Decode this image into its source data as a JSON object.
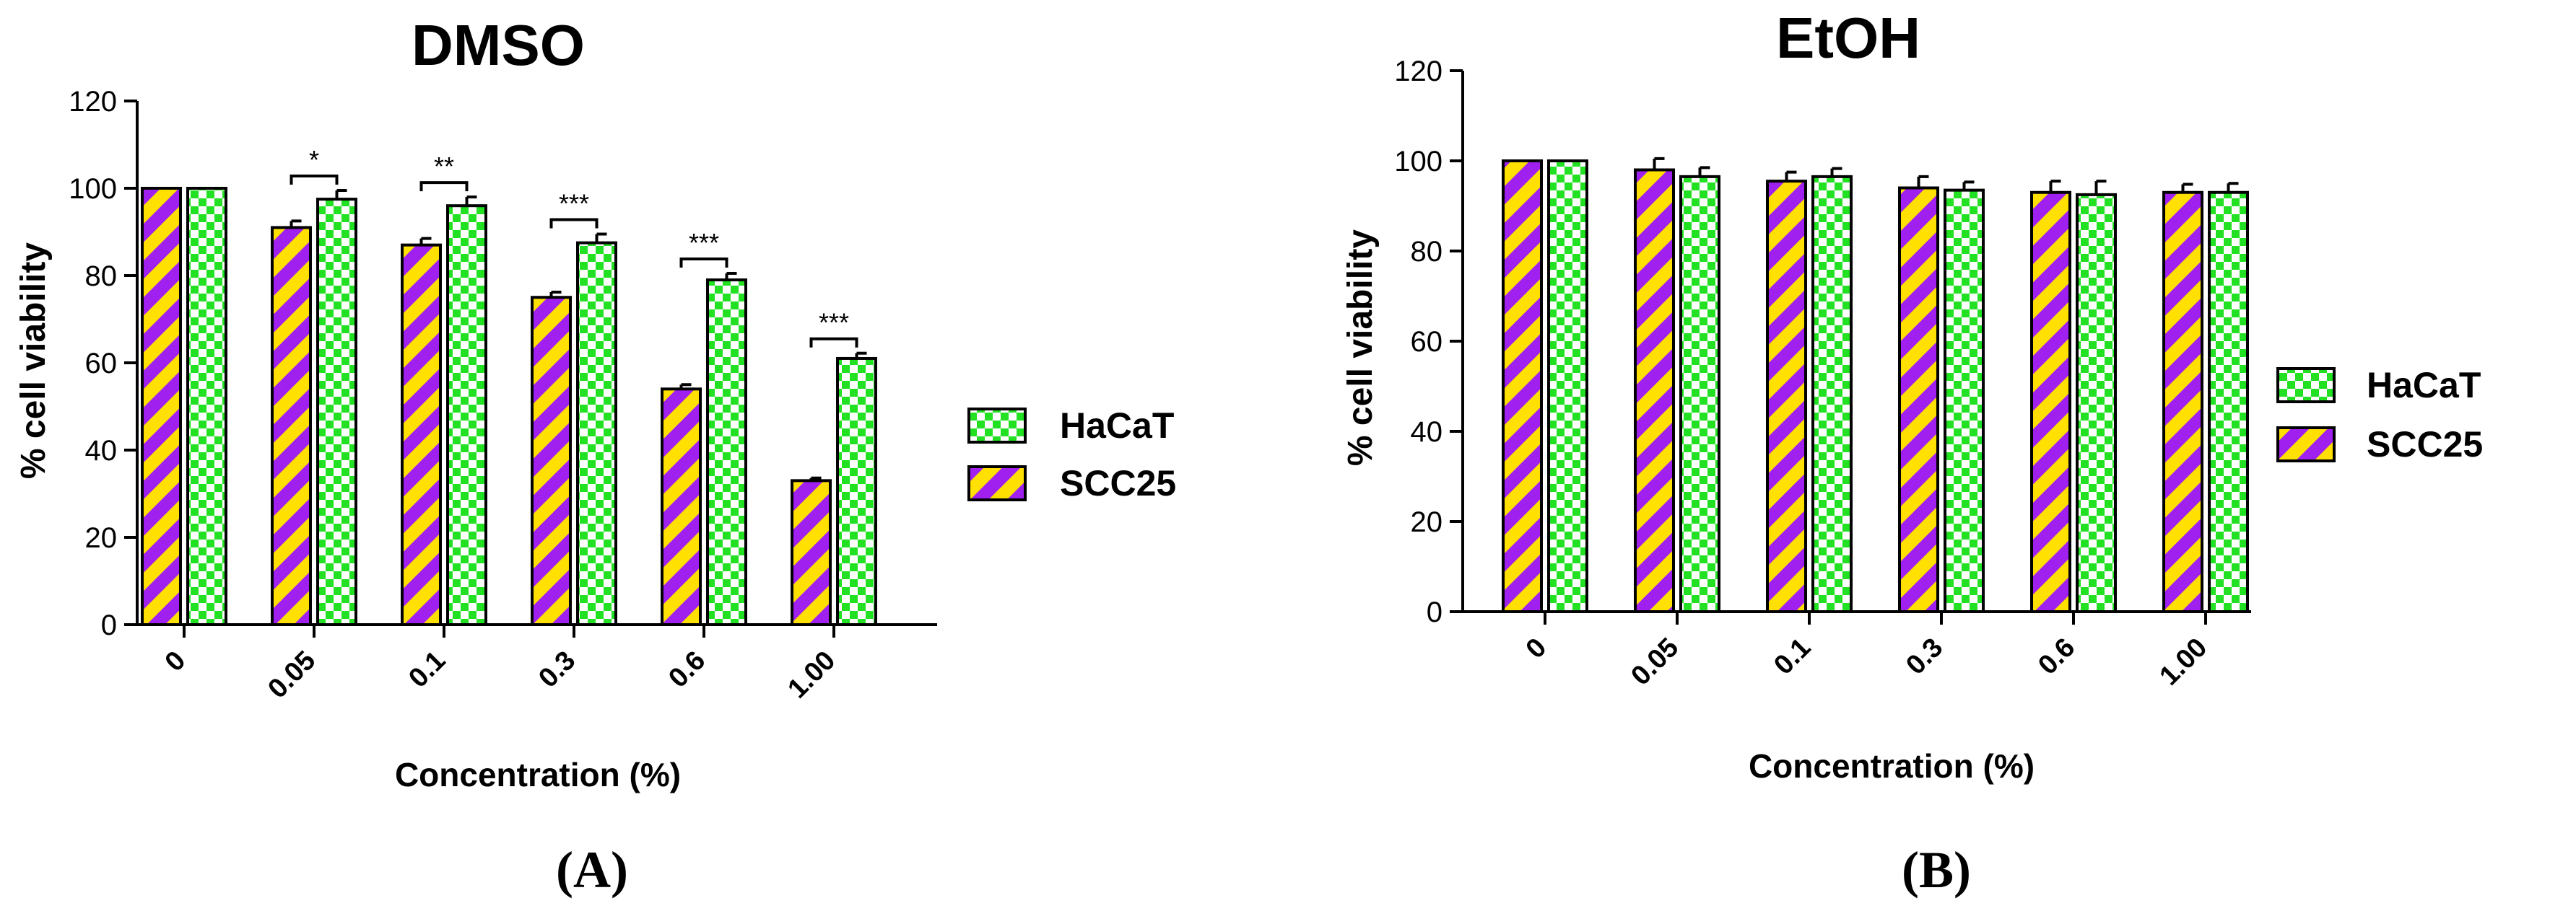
{
  "colors": {
    "haCaT_bg": "#ffffff",
    "haCaT_fill": "#22e022",
    "scc25_a": "#ffe000",
    "scc25_b": "#a020f0",
    "axis": "#000000"
  },
  "chart_data": [
    {
      "type": "bar",
      "title": "DMSO",
      "panel": "(A)",
      "xlabel": "Concentration (%)",
      "ylabel": "% cell viability",
      "ylim": [
        0,
        120
      ],
      "yticks": [
        0,
        20,
        40,
        60,
        80,
        100,
        120
      ],
      "categories": [
        "0",
        "0.05",
        "0.1",
        "0.3",
        "0.6",
        "1.00"
      ],
      "legend_position": "right",
      "legend": [
        "HaCaT",
        "SCC25"
      ],
      "series": [
        {
          "name": "SCC25",
          "pattern": "diagonal-stripes",
          "values": [
            100,
            91,
            87,
            75,
            54,
            33
          ],
          "errors": [
            0,
            1.5,
            1.5,
            1.2,
            1.0,
            0.6
          ]
        },
        {
          "name": "HaCaT",
          "pattern": "checker",
          "values": [
            100,
            97.5,
            96,
            87.5,
            79,
            61
          ],
          "errors": [
            0,
            2.0,
            2.0,
            2.0,
            1.5,
            1.2
          ]
        }
      ],
      "annotations": [
        "*",
        "**",
        "***",
        "***",
        "***"
      ]
    },
    {
      "type": "bar",
      "title": "EtOH",
      "panel": "(B)",
      "xlabel": "Concentration (%)",
      "ylabel": "% cell viability",
      "ylim": [
        0,
        120
      ],
      "yticks": [
        0,
        20,
        40,
        60,
        80,
        100,
        120
      ],
      "categories": [
        "0",
        "0.05",
        "0.1",
        "0.3",
        "0.6",
        "1.00"
      ],
      "legend_position": "right",
      "legend": [
        "HaCaT",
        "SCC25"
      ],
      "series": [
        {
          "name": "SCC25",
          "pattern": "diagonal-stripes",
          "values": [
            100,
            98,
            95.5,
            94,
            93,
            93
          ],
          "errors": [
            0,
            2.5,
            2.0,
            2.5,
            2.5,
            1.8
          ]
        },
        {
          "name": "HaCaT",
          "pattern": "checker",
          "values": [
            100,
            96.5,
            96.5,
            93.5,
            92.5,
            93
          ],
          "errors": [
            0,
            2.0,
            1.8,
            1.8,
            3.0,
            2.0
          ]
        }
      ],
      "annotations": []
    }
  ]
}
